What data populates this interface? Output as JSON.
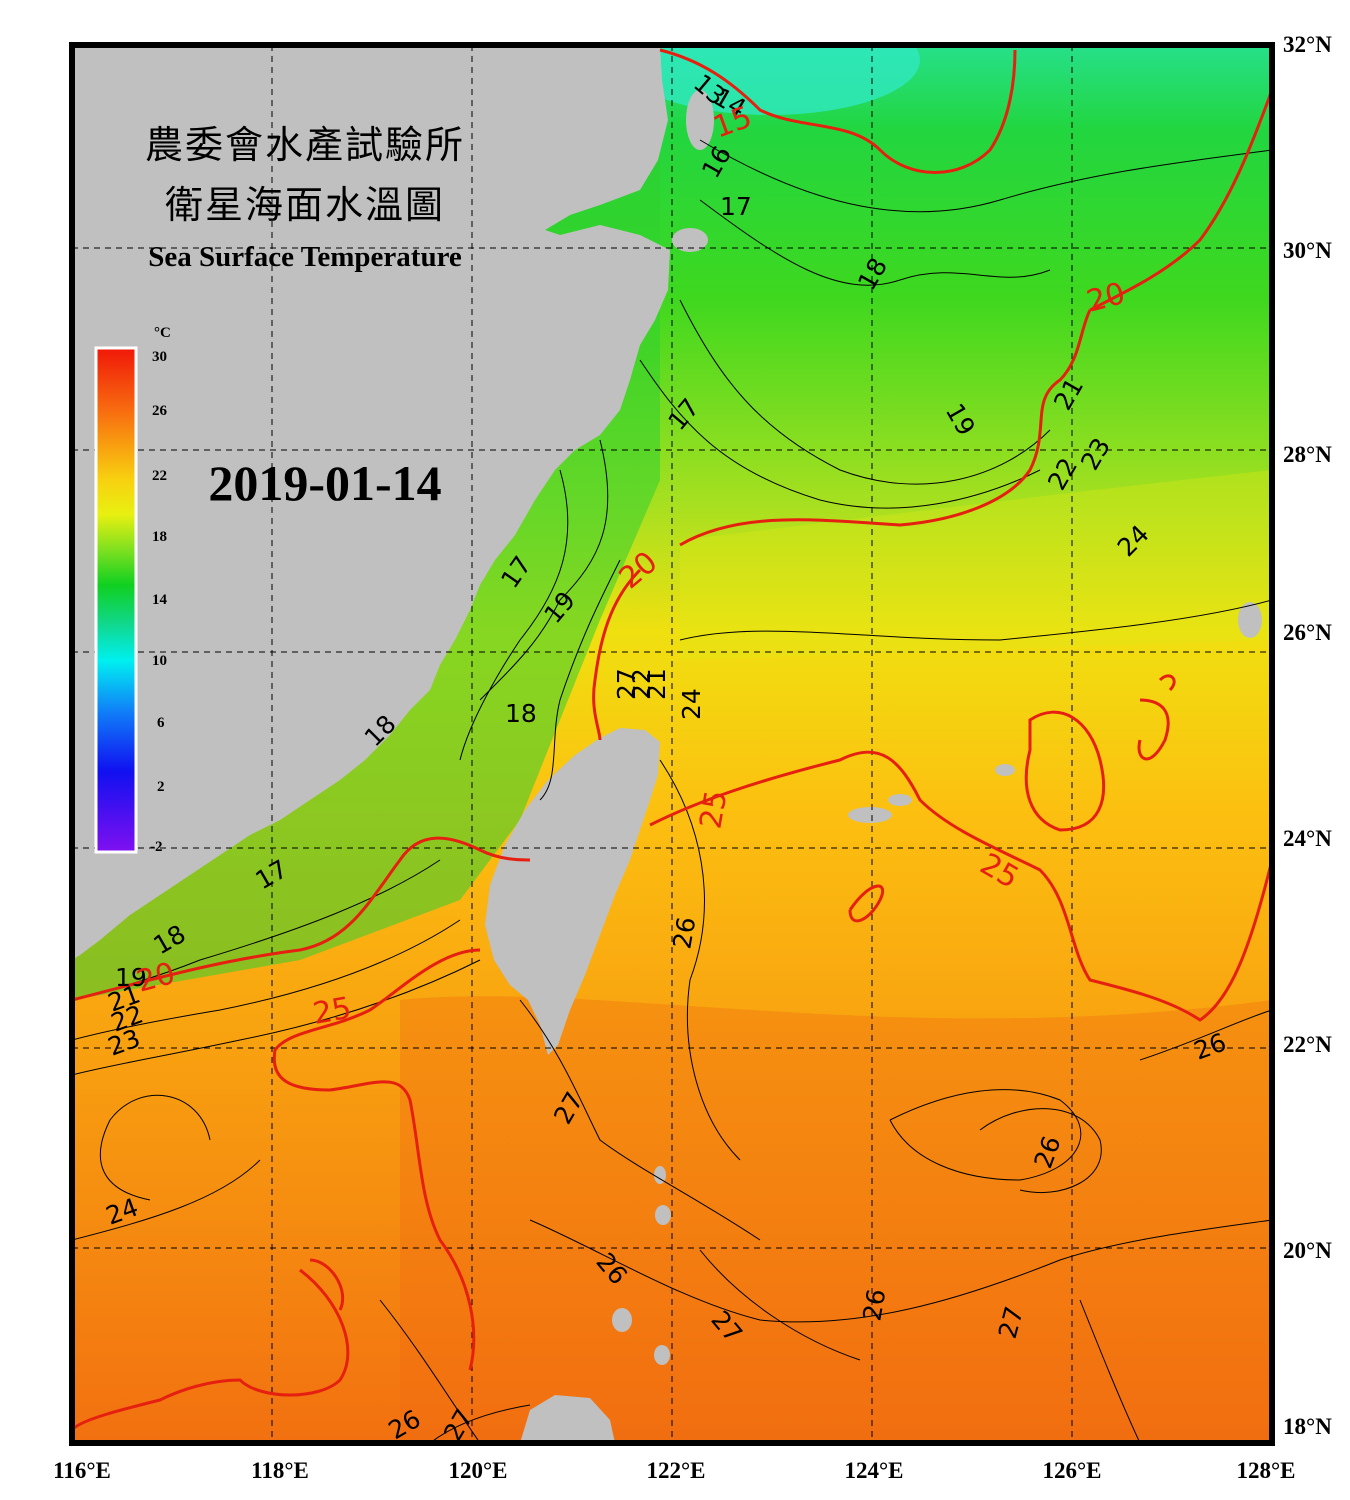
{
  "title_lines": [
    "農委會水產試驗所",
    "衛星海面水溫圖"
  ],
  "subtitle": "Sea Surface Temperature",
  "date": "2019-01-14",
  "colorbar": {
    "unit": "°C",
    "ticks": [
      "30",
      "26",
      "22",
      "18",
      "14",
      "10",
      "6",
      "2",
      "-2"
    ]
  },
  "lon_labels": [
    "116°E",
    "118°E",
    "120°E",
    "122°E",
    "124°E",
    "126°E",
    "128°E"
  ],
  "lat_labels": [
    "32°N",
    "30°N",
    "28°N",
    "26°N",
    "24°N",
    "22°N",
    "20°N",
    "18°N"
  ],
  "contour_labels_black": [
    "13",
    "14",
    "16",
    "17",
    "18",
    "19",
    "21",
    "23",
    "22",
    "24",
    "17",
    "19",
    "17",
    "27",
    "22",
    "21",
    "24",
    "18",
    "18",
    "17",
    "18",
    "19",
    "21",
    "22",
    "23",
    "26",
    "26",
    "27",
    "26",
    "24",
    "26",
    "26",
    "27",
    "27",
    "26",
    "27"
  ],
  "contour_labels_red": [
    "15",
    "20",
    "20",
    "25",
    "25",
    "20",
    "25"
  ],
  "colors": {
    "land": "#c0c0c0",
    "frame": "#000000",
    "contour": "#000000",
    "contour_major": "#e52010"
  }
}
